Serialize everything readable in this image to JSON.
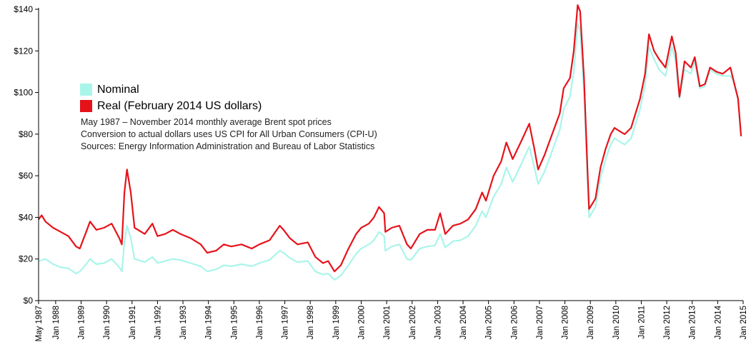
{
  "colors": {
    "nominal": "#aaf5ea",
    "real": "#e6121a",
    "axis": "#000000"
  },
  "legend": {
    "nominal_label": "Nominal",
    "real_label": "Real (February 2014 US dollars)"
  },
  "notes": [
    "May 1987 – November 2014 monthly average Brent spot prices",
    "Conversion to actual dollars uses US CPI for All Urban Consumers (CPI-U)",
    "Sources: Energy Information Administration and Bureau of Labor Statistics"
  ],
  "chart_data": {
    "type": "line",
    "title": "",
    "xlabel": "",
    "ylabel": "",
    "ylim": [
      0,
      140
    ],
    "xlim": [
      1987.33,
      2015
    ],
    "y_ticks": [
      0,
      20,
      40,
      60,
      80,
      100,
      120,
      140
    ],
    "y_tick_labels": [
      "$0",
      "$20",
      "$40",
      "$60",
      "$80",
      "$100",
      "$120",
      "$140"
    ],
    "x_ticks": [
      1987.33,
      1988,
      1989,
      1990,
      1991,
      1992,
      1993,
      1994,
      1995,
      1996,
      1997,
      1998,
      1999,
      2000,
      2001,
      2002,
      2003,
      2004,
      2005,
      2006,
      2007,
      2008,
      2009,
      2010,
      2011,
      2012,
      2013,
      2014,
      2015
    ],
    "x_tick_labels": [
      "May 1987",
      "Jan 1988",
      "Jan 1989",
      "Jan 1990",
      "Jan 1991",
      "Jan 1992",
      "Jan 1993",
      "Jan 1994",
      "Jan 1995",
      "Jan 1996",
      "Jan 1997",
      "Jan 1998",
      "Jan 1999",
      "Jan 2000",
      "Jan 2001",
      "Jan 2002",
      "Jan 2003",
      "Jan 2004",
      "Jan 2005",
      "Jan 2006",
      "Jan 2007",
      "Jan 2008",
      "Jan 2009",
      "Jan 2010",
      "Jan 2011",
      "Jan 2012",
      "Jan 2013",
      "Jan 2014",
      "Jan 2015"
    ],
    "series": [
      {
        "name": "Nominal",
        "points": [
          [
            1987.33,
            19
          ],
          [
            1987.6,
            20
          ],
          [
            1987.9,
            17.5
          ],
          [
            1988.2,
            16
          ],
          [
            1988.5,
            15.5
          ],
          [
            1988.8,
            13
          ],
          [
            1988.95,
            14
          ],
          [
            1989.2,
            17.5
          ],
          [
            1989.35,
            20
          ],
          [
            1989.6,
            17.5
          ],
          [
            1989.9,
            18
          ],
          [
            1990.2,
            20
          ],
          [
            1990.5,
            16
          ],
          [
            1990.6,
            14
          ],
          [
            1990.7,
            28
          ],
          [
            1990.8,
            36
          ],
          [
            1990.95,
            30
          ],
          [
            1991.1,
            20
          ],
          [
            1991.5,
            18.5
          ],
          [
            1991.8,
            21
          ],
          [
            1992.0,
            18
          ],
          [
            1992.3,
            19
          ],
          [
            1992.6,
            20
          ],
          [
            1992.9,
            19.5
          ],
          [
            1993.3,
            18
          ],
          [
            1993.7,
            16.5
          ],
          [
            1993.95,
            14
          ],
          [
            1994.3,
            15
          ],
          [
            1994.6,
            17
          ],
          [
            1994.9,
            16.5
          ],
          [
            1995.3,
            17.5
          ],
          [
            1995.7,
            16.5
          ],
          [
            1996.0,
            18
          ],
          [
            1996.4,
            19.5
          ],
          [
            1996.8,
            24
          ],
          [
            1996.95,
            23
          ],
          [
            1997.2,
            20.5
          ],
          [
            1997.5,
            18.5
          ],
          [
            1997.9,
            19
          ],
          [
            1998.2,
            14
          ],
          [
            1998.5,
            12.5
          ],
          [
            1998.7,
            13
          ],
          [
            1998.95,
            10
          ],
          [
            1999.2,
            12
          ],
          [
            1999.5,
            17
          ],
          [
            1999.8,
            22.5
          ],
          [
            2000.0,
            25
          ],
          [
            2000.3,
            27
          ],
          [
            2000.5,
            29
          ],
          [
            2000.7,
            33
          ],
          [
            2000.9,
            31
          ],
          [
            2000.95,
            24
          ],
          [
            2001.2,
            26
          ],
          [
            2001.5,
            27
          ],
          [
            2001.8,
            20
          ],
          [
            2001.95,
            19.5
          ],
          [
            2002.3,
            25
          ],
          [
            2002.6,
            26
          ],
          [
            2002.9,
            26.5
          ],
          [
            2003.1,
            32
          ],
          [
            2003.3,
            25.5
          ],
          [
            2003.6,
            28.5
          ],
          [
            2003.9,
            29
          ],
          [
            2004.2,
            31
          ],
          [
            2004.5,
            36
          ],
          [
            2004.75,
            43
          ],
          [
            2004.9,
            40
          ],
          [
            2005.2,
            50
          ],
          [
            2005.5,
            56
          ],
          [
            2005.7,
            64
          ],
          [
            2005.95,
            57
          ],
          [
            2006.3,
            66
          ],
          [
            2006.6,
            74
          ],
          [
            2006.8,
            64
          ],
          [
            2006.95,
            56
          ],
          [
            2007.2,
            62
          ],
          [
            2007.5,
            72
          ],
          [
            2007.8,
            82
          ],
          [
            2007.95,
            92
          ],
          [
            2008.2,
            98
          ],
          [
            2008.35,
            110
          ],
          [
            2008.5,
            133
          ],
          [
            2008.6,
            130
          ],
          [
            2008.75,
            100
          ],
          [
            2008.9,
            55
          ],
          [
            2008.95,
            40
          ],
          [
            2009.2,
            45
          ],
          [
            2009.4,
            59
          ],
          [
            2009.6,
            68
          ],
          [
            2009.8,
            75
          ],
          [
            2009.95,
            78
          ],
          [
            2010.2,
            76
          ],
          [
            2010.35,
            75
          ],
          [
            2010.6,
            78
          ],
          [
            2010.95,
            92
          ],
          [
            2011.15,
            104
          ],
          [
            2011.3,
            122
          ],
          [
            2011.5,
            116
          ],
          [
            2011.7,
            111
          ],
          [
            2011.95,
            108
          ],
          [
            2012.2,
            122
          ],
          [
            2012.35,
            115
          ],
          [
            2012.5,
            97
          ],
          [
            2012.7,
            111
          ],
          [
            2012.95,
            109
          ],
          [
            2013.1,
            115
          ],
          [
            2013.3,
            102
          ],
          [
            2013.5,
            103
          ],
          [
            2013.7,
            111
          ],
          [
            2013.95,
            109
          ],
          [
            2014.2,
            108
          ],
          [
            2014.5,
            108
          ],
          [
            2014.6,
            106
          ],
          [
            2014.8,
            97
          ],
          [
            2014.92,
            79
          ]
        ]
      },
      {
        "name": "Real (February 2014 US dollars)",
        "points": [
          [
            1987.33,
            39
          ],
          [
            1987.45,
            41
          ],
          [
            1987.6,
            38
          ],
          [
            1987.9,
            35
          ],
          [
            1988.2,
            33
          ],
          [
            1988.5,
            31
          ],
          [
            1988.8,
            26
          ],
          [
            1988.95,
            25
          ],
          [
            1989.2,
            33
          ],
          [
            1989.35,
            38
          ],
          [
            1989.6,
            34
          ],
          [
            1989.9,
            35
          ],
          [
            1990.2,
            37
          ],
          [
            1990.5,
            30
          ],
          [
            1990.6,
            27
          ],
          [
            1990.7,
            52
          ],
          [
            1990.8,
            63
          ],
          [
            1990.95,
            52
          ],
          [
            1991.1,
            35
          ],
          [
            1991.5,
            32
          ],
          [
            1991.8,
            37
          ],
          [
            1992.0,
            31
          ],
          [
            1992.3,
            32
          ],
          [
            1992.6,
            34
          ],
          [
            1992.9,
            32
          ],
          [
            1993.3,
            30
          ],
          [
            1993.7,
            27
          ],
          [
            1993.95,
            23
          ],
          [
            1994.3,
            24
          ],
          [
            1994.6,
            27
          ],
          [
            1994.9,
            26
          ],
          [
            1995.3,
            27
          ],
          [
            1995.7,
            25
          ],
          [
            1996.0,
            27
          ],
          [
            1996.4,
            29
          ],
          [
            1996.8,
            36
          ],
          [
            1996.95,
            34
          ],
          [
            1997.2,
            30
          ],
          [
            1997.5,
            27
          ],
          [
            1997.9,
            28
          ],
          [
            1998.2,
            21
          ],
          [
            1998.5,
            18
          ],
          [
            1998.7,
            19
          ],
          [
            1998.95,
            14
          ],
          [
            1999.2,
            17
          ],
          [
            1999.5,
            25
          ],
          [
            1999.8,
            32
          ],
          [
            2000.0,
            35
          ],
          [
            2000.3,
            37
          ],
          [
            2000.5,
            40
          ],
          [
            2000.7,
            45
          ],
          [
            2000.9,
            42
          ],
          [
            2000.95,
            33
          ],
          [
            2001.2,
            35
          ],
          [
            2001.5,
            36
          ],
          [
            2001.8,
            27
          ],
          [
            2001.95,
            25
          ],
          [
            2002.3,
            32
          ],
          [
            2002.6,
            34
          ],
          [
            2002.9,
            34
          ],
          [
            2003.1,
            42
          ],
          [
            2003.3,
            32
          ],
          [
            2003.6,
            36
          ],
          [
            2003.9,
            37
          ],
          [
            2004.2,
            39
          ],
          [
            2004.5,
            44
          ],
          [
            2004.75,
            52
          ],
          [
            2004.9,
            48
          ],
          [
            2005.2,
            60
          ],
          [
            2005.5,
            67
          ],
          [
            2005.7,
            76
          ],
          [
            2005.95,
            68
          ],
          [
            2006.3,
            77
          ],
          [
            2006.6,
            85
          ],
          [
            2006.8,
            73
          ],
          [
            2006.95,
            63
          ],
          [
            2007.2,
            70
          ],
          [
            2007.5,
            80
          ],
          [
            2007.8,
            90
          ],
          [
            2007.95,
            102
          ],
          [
            2008.2,
            107
          ],
          [
            2008.35,
            120
          ],
          [
            2008.5,
            142
          ],
          [
            2008.6,
            139
          ],
          [
            2008.75,
            107
          ],
          [
            2008.9,
            59
          ],
          [
            2008.95,
            44
          ],
          [
            2009.2,
            49
          ],
          [
            2009.4,
            64
          ],
          [
            2009.6,
            73
          ],
          [
            2009.8,
            80
          ],
          [
            2009.95,
            83
          ],
          [
            2010.2,
            81
          ],
          [
            2010.35,
            80
          ],
          [
            2010.6,
            83
          ],
          [
            2010.95,
            97
          ],
          [
            2011.15,
            109
          ],
          [
            2011.3,
            128
          ],
          [
            2011.5,
            120
          ],
          [
            2011.7,
            116
          ],
          [
            2011.95,
            112
          ],
          [
            2012.2,
            127
          ],
          [
            2012.35,
            119
          ],
          [
            2012.5,
            98
          ],
          [
            2012.7,
            115
          ],
          [
            2012.95,
            112
          ],
          [
            2013.1,
            117
          ],
          [
            2013.3,
            103
          ],
          [
            2013.5,
            104
          ],
          [
            2013.7,
            112
          ],
          [
            2013.95,
            110
          ],
          [
            2014.2,
            109
          ],
          [
            2014.5,
            112
          ],
          [
            2014.6,
            107
          ],
          [
            2014.8,
            97
          ],
          [
            2014.92,
            79
          ]
        ]
      }
    ]
  }
}
